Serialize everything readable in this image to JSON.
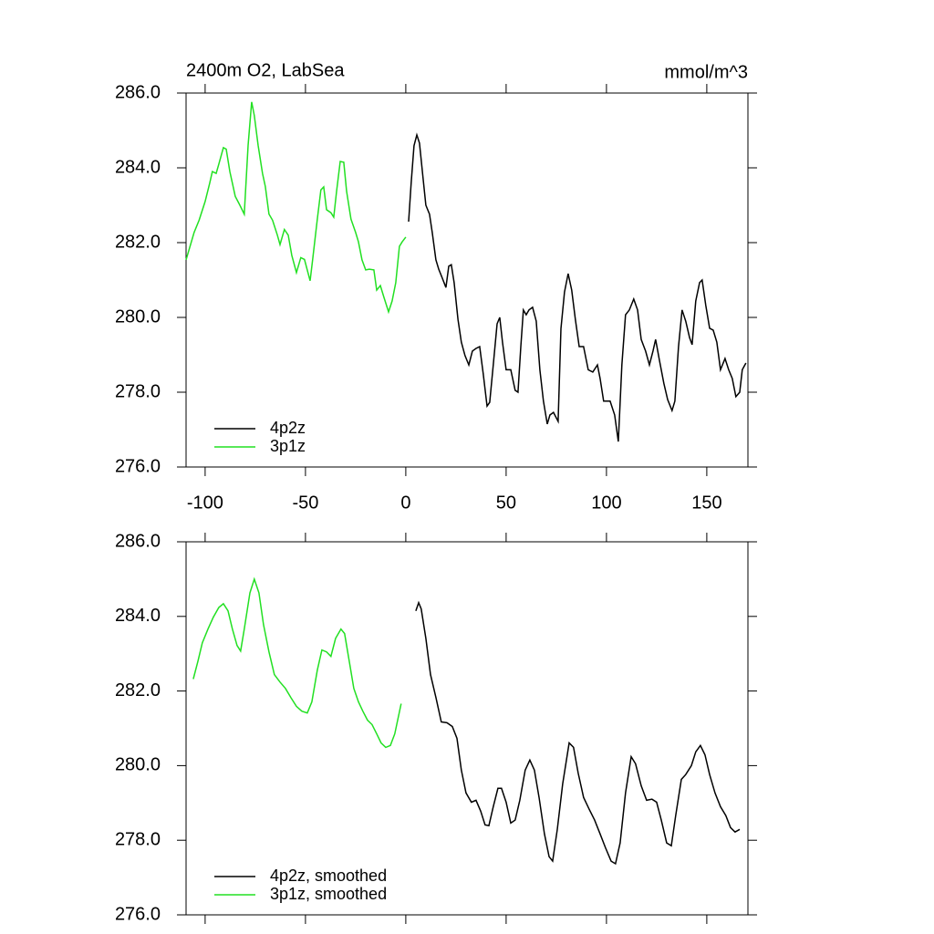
{
  "chart_data": [
    {
      "type": "line",
      "title": "2400m O2, LabSea",
      "units": "mmol/m^3",
      "xlim": [
        -109.5,
        170.5
      ],
      "ylim": [
        276,
        286
      ],
      "xticks": [
        -100,
        -50,
        0,
        50,
        100,
        150
      ],
      "yticks": [
        {
          "value": 276,
          "label": "276.0"
        },
        {
          "value": 278,
          "label": "278.0"
        },
        {
          "value": 280,
          "label": "280.0"
        },
        {
          "value": 282,
          "label": "282.0"
        },
        {
          "value": 284,
          "label": "284.0"
        },
        {
          "value": 286,
          "label": "286.0"
        }
      ],
      "legend": "lower left",
      "series": [
        {
          "name": "4p2z",
          "color": "#000000",
          "x": [
            1.4,
            2.7,
            4.1,
            5.5,
            6.8,
            8.6,
            10,
            11.8,
            13.2,
            15,
            16.4,
            18.2,
            20,
            21.4,
            22.7,
            24.1,
            26,
            27.7,
            29.5,
            31.4,
            33.2,
            35,
            36.8,
            38.6,
            40.5,
            41.8,
            43.6,
            45.5,
            46.8,
            48.2,
            50,
            52.3,
            54.5,
            55.9,
            57.3,
            58.6,
            60,
            61.4,
            63.2,
            65,
            66.8,
            68.6,
            70.5,
            71.8,
            73.6,
            75.9,
            77.3,
            79.1,
            80.9,
            82.7,
            84.5,
            86.4,
            88.6,
            90.9,
            93.2,
            95.5,
            96.8,
            98.6,
            101.8,
            104.1,
            105.9,
            107.7,
            109.5,
            111.4,
            113.6,
            115.5,
            117.3,
            119.5,
            121.4,
            123.2,
            124.5,
            126.4,
            128.6,
            130.5,
            132.7,
            134.1,
            135.9,
            137.7,
            139.5,
            141.4,
            142.7,
            144.5,
            146.4,
            147.7,
            149.5,
            151.4,
            153.2,
            155,
            156.8,
            159.1,
            160.9,
            162.7,
            164.5,
            166.4,
            167.7,
            169.5
          ],
          "values": [
            282.56,
            283.6,
            284.59,
            284.88,
            284.66,
            283.73,
            283.0,
            282.76,
            282.27,
            281.54,
            281.29,
            281.05,
            280.8,
            281.37,
            281.41,
            280.93,
            279.95,
            279.34,
            278.98,
            278.73,
            279.1,
            279.17,
            279.22,
            278.49,
            277.63,
            277.73,
            278.73,
            279.83,
            280.0,
            279.34,
            278.6,
            278.6,
            278.05,
            278.0,
            279.22,
            280.2,
            280.07,
            280.2,
            280.27,
            279.9,
            278.6,
            277.76,
            277.15,
            277.39,
            277.46,
            277.22,
            279.7,
            280.68,
            281.17,
            280.73,
            279.95,
            279.22,
            279.22,
            278.6,
            278.54,
            278.73,
            278.37,
            277.76,
            277.76,
            277.39,
            276.68,
            278.73,
            280.07,
            280.2,
            280.49,
            280.2,
            279.41,
            279.1,
            278.73,
            279.1,
            279.41,
            278.85,
            278.24,
            277.8,
            277.51,
            277.76,
            279.22,
            280.2,
            279.9,
            279.46,
            279.27,
            280.44,
            280.93,
            281.0,
            280.32,
            279.71,
            279.66,
            279.34,
            278.6,
            278.9,
            278.6,
            278.37,
            277.88,
            278.0,
            278.6,
            278.78
          ]
        },
        {
          "name": "3p1z",
          "color": "#22e022",
          "x": [
            -109.5,
            -105.5,
            -103,
            -100,
            -97.7,
            -96.4,
            -94.5,
            -93.2,
            -90.9,
            -89.5,
            -87.7,
            -85,
            -82.7,
            -80.5,
            -78.6,
            -76.8,
            -75.5,
            -73.6,
            -71.4,
            -70,
            -68.2,
            -66.4,
            -64,
            -62.7,
            -60.5,
            -58.6,
            -56.8,
            -54.5,
            -52.3,
            -50.5,
            -47.7,
            -46.4,
            -44.1,
            -42.3,
            -40.9,
            -39.5,
            -37.3,
            -35.9,
            -34.5,
            -32.7,
            -30.9,
            -29.5,
            -27.3,
            -25,
            -23.6,
            -21.8,
            -20,
            -18.2,
            -15.9,
            -14.5,
            -12.7,
            -10.9,
            -8.6,
            -6.8,
            -5,
            -3.2,
            -1.8,
            0
          ],
          "values": [
            281.54,
            282.27,
            282.6,
            283.1,
            283.6,
            283.9,
            283.85,
            284.1,
            284.54,
            284.5,
            283.9,
            283.24,
            283.0,
            282.76,
            284.6,
            285.76,
            285.4,
            284.6,
            283.85,
            283.5,
            282.76,
            282.6,
            282.2,
            281.95,
            282.35,
            282.2,
            281.66,
            281.2,
            281.6,
            281.55,
            280.98,
            281.55,
            282.63,
            283.41,
            283.49,
            282.88,
            282.8,
            282.68,
            283.37,
            284.17,
            284.15,
            283.37,
            282.63,
            282.27,
            282.02,
            281.54,
            281.27,
            281.29,
            281.27,
            280.73,
            280.85,
            280.54,
            280.15,
            280.44,
            280.93,
            281.9,
            282.02,
            282.15
          ]
        }
      ]
    },
    {
      "type": "line",
      "xlim": [
        -109.5,
        170.5
      ],
      "ylim": [
        276,
        286
      ],
      "xticks": [
        -100,
        -50,
        0,
        50,
        100,
        150
      ],
      "yticks": [
        {
          "value": 276,
          "label": "276.0"
        },
        {
          "value": 278,
          "label": "278.0"
        },
        {
          "value": 280,
          "label": "280.0"
        },
        {
          "value": 282,
          "label": "282.0"
        },
        {
          "value": 284,
          "label": "284.0"
        },
        {
          "value": 286,
          "label": "286.0"
        }
      ],
      "legend": "lower left",
      "series": [
        {
          "name": "4p2z, smoothed",
          "color": "#000000",
          "x": [
            5,
            6.4,
            7.7,
            10,
            12.3,
            15,
            17.7,
            20.5,
            23.2,
            25.5,
            27.7,
            30,
            32.7,
            35,
            37.3,
            39.5,
            41.4,
            43.6,
            45.9,
            47.7,
            50,
            52.3,
            54.5,
            56.8,
            59.5,
            61.8,
            64.1,
            66.4,
            69.1,
            71.4,
            73.2,
            75.5,
            78.2,
            81.4,
            83.6,
            85.9,
            88.6,
            91.4,
            94.1,
            96.8,
            99.5,
            102.3,
            104.5,
            106.8,
            109.5,
            112.3,
            114.5,
            117.3,
            120,
            122.7,
            125,
            127.3,
            130,
            132.3,
            134.5,
            137.3,
            139.5,
            142.3,
            144.5,
            146.8,
            149.1,
            151.4,
            154.1,
            156.8,
            159.5,
            161.8,
            164.1,
            166.4
          ],
          "values": [
            284.15,
            284.37,
            284.2,
            283.41,
            282.44,
            281.83,
            281.17,
            281.15,
            281.05,
            280.73,
            279.88,
            279.27,
            279.02,
            279.07,
            278.78,
            278.41,
            278.39,
            278.9,
            279.39,
            279.39,
            279.02,
            278.46,
            278.54,
            279.07,
            279.88,
            280.15,
            279.88,
            279.15,
            278.17,
            277.56,
            277.44,
            278.29,
            279.51,
            280.61,
            280.49,
            279.8,
            279.15,
            278.83,
            278.54,
            278.17,
            277.8,
            277.44,
            277.37,
            277.93,
            279.27,
            280.24,
            280.05,
            279.46,
            279.07,
            279.1,
            279.02,
            278.54,
            277.93,
            277.85,
            278.66,
            279.63,
            279.76,
            280.0,
            280.37,
            280.54,
            280.29,
            279.76,
            279.27,
            278.9,
            278.66,
            278.34,
            278.22,
            278.29
          ]
        },
        {
          "name": "3p1z, smoothed",
          "color": "#22e022",
          "x": [
            -105.9,
            -103.6,
            -101.4,
            -98.6,
            -95.9,
            -93.2,
            -90.9,
            -88.6,
            -86.4,
            -84.1,
            -82.3,
            -80.5,
            -77.7,
            -75.5,
            -73.2,
            -70.9,
            -68.2,
            -65.5,
            -62.7,
            -60,
            -57.3,
            -54.5,
            -51.8,
            -49.1,
            -46.8,
            -44.1,
            -41.8,
            -39.5,
            -37.3,
            -35,
            -32.3,
            -30.5,
            -28.2,
            -25.9,
            -23.6,
            -21.4,
            -19.1,
            -16.8,
            -14.5,
            -12.3,
            -10,
            -7.7,
            -5.5,
            -2.3
          ],
          "values": [
            282.32,
            282.8,
            283.29,
            283.66,
            283.98,
            284.24,
            284.34,
            284.15,
            283.66,
            283.22,
            283.07,
            283.66,
            284.63,
            285.0,
            284.63,
            283.78,
            283.05,
            282.44,
            282.24,
            282.07,
            281.83,
            281.59,
            281.46,
            281.41,
            281.71,
            282.56,
            283.1,
            283.05,
            282.93,
            283.41,
            283.66,
            283.54,
            282.8,
            282.07,
            281.71,
            281.46,
            281.22,
            281.1,
            280.85,
            280.61,
            280.49,
            280.54,
            280.85,
            281.66
          ]
        }
      ]
    }
  ]
}
